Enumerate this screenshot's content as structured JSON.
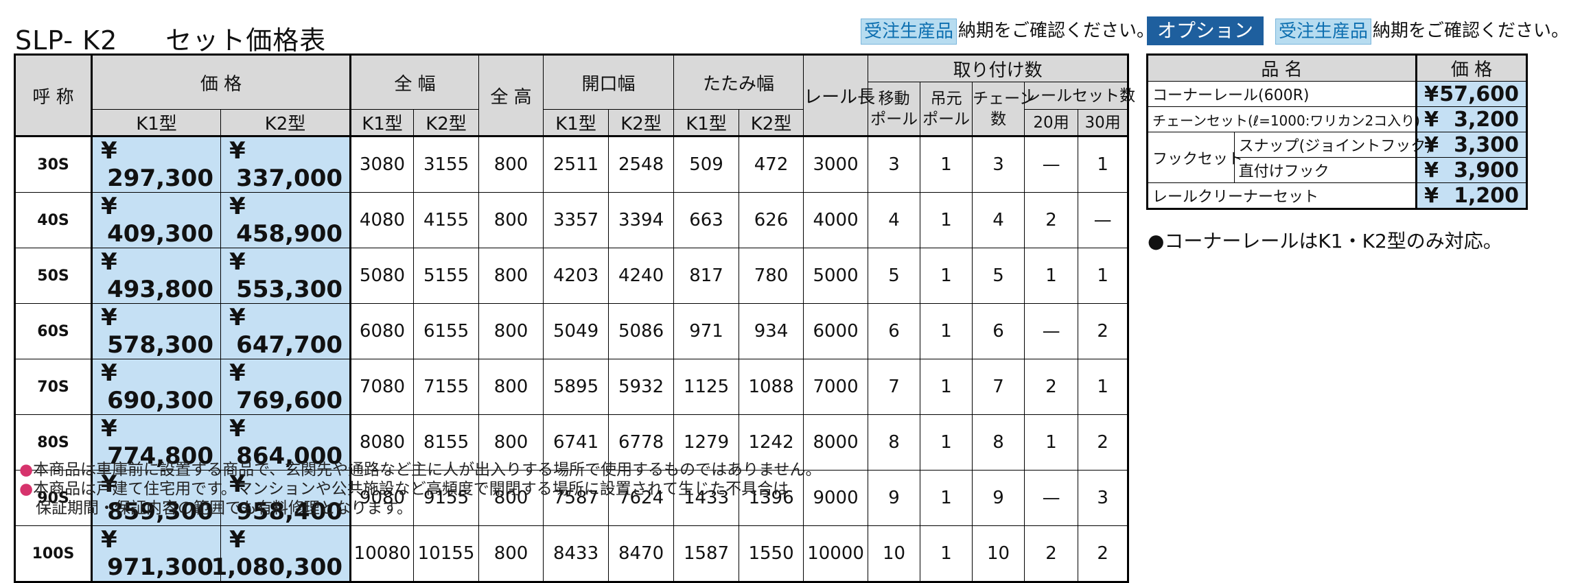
{
  "header": {
    "model": "SLP- K2",
    "subtitle": "セット価格表",
    "badge": "受注生産品",
    "note": "納期をご確認ください。",
    "option_title": "オプション",
    "option_badge": "受注生産品",
    "option_note": "納期をご確認ください。"
  },
  "table": {
    "col_headers": {
      "name": "呼 称",
      "price": "価 格",
      "width_total": "全 幅",
      "height_total": "全 高",
      "opening": "開口幅",
      "folding": "たたみ幅",
      "rail_length": "レール長",
      "mounting": "取り付け数",
      "moving_pole": "移動\nポール",
      "hanging_pole": "吊元\nポール",
      "chain": "チェーン\n数",
      "rail_set": "レールセット数",
      "k1": "K1型",
      "k2": "K2型",
      "use20": "20用",
      "use30": "30用"
    },
    "rows": [
      {
        "name": "30S",
        "k1_price": "297,300",
        "k2_price": "337,000",
        "w_k1": "3080",
        "w_k2": "3155",
        "h": "800",
        "o_k1": "2511",
        "o_k2": "2548",
        "f_k1": "509",
        "f_k2": "472",
        "rail": "3000",
        "move": "3",
        "hang": "1",
        "chain": "3",
        "r20": "—",
        "r30": "1"
      },
      {
        "name": "40S",
        "k1_price": "409,300",
        "k2_price": "458,900",
        "w_k1": "4080",
        "w_k2": "4155",
        "h": "800",
        "o_k1": "3357",
        "o_k2": "3394",
        "f_k1": "663",
        "f_k2": "626",
        "rail": "4000",
        "move": "4",
        "hang": "1",
        "chain": "4",
        "r20": "2",
        "r30": "—"
      },
      {
        "name": "50S",
        "k1_price": "493,800",
        "k2_price": "553,300",
        "w_k1": "5080",
        "w_k2": "5155",
        "h": "800",
        "o_k1": "4203",
        "o_k2": "4240",
        "f_k1": "817",
        "f_k2": "780",
        "rail": "5000",
        "move": "5",
        "hang": "1",
        "chain": "5",
        "r20": "1",
        "r30": "1"
      },
      {
        "name": "60S",
        "k1_price": "578,300",
        "k2_price": "647,700",
        "w_k1": "6080",
        "w_k2": "6155",
        "h": "800",
        "o_k1": "5049",
        "o_k2": "5086",
        "f_k1": "971",
        "f_k2": "934",
        "rail": "6000",
        "move": "6",
        "hang": "1",
        "chain": "6",
        "r20": "—",
        "r30": "2"
      },
      {
        "name": "70S",
        "k1_price": "690,300",
        "k2_price": "769,600",
        "w_k1": "7080",
        "w_k2": "7155",
        "h": "800",
        "o_k1": "5895",
        "o_k2": "5932",
        "f_k1": "1125",
        "f_k2": "1088",
        "rail": "7000",
        "move": "7",
        "hang": "1",
        "chain": "7",
        "r20": "2",
        "r30": "1"
      },
      {
        "name": "80S",
        "k1_price": "774,800",
        "k2_price": "864,000",
        "w_k1": "8080",
        "w_k2": "8155",
        "h": "800",
        "o_k1": "6741",
        "o_k2": "6778",
        "f_k1": "1279",
        "f_k2": "1242",
        "rail": "8000",
        "move": "8",
        "hang": "1",
        "chain": "8",
        "r20": "1",
        "r30": "2"
      },
      {
        "name": "90S",
        "k1_price": "859,300",
        "k2_price": "958,400",
        "w_k1": "9080",
        "w_k2": "9155",
        "h": "800",
        "o_k1": "7587",
        "o_k2": "7624",
        "f_k1": "1433",
        "f_k2": "1396",
        "rail": "9000",
        "move": "9",
        "hang": "1",
        "chain": "9",
        "r20": "—",
        "r30": "3"
      },
      {
        "name": "100S",
        "k1_price": "971,300",
        "k2_price": "1,080,300",
        "w_k1": "10080",
        "w_k2": "10155",
        "h": "800",
        "o_k1": "8433",
        "o_k2": "8470",
        "f_k1": "1587",
        "f_k2": "1550",
        "rail": "10000",
        "move": "10",
        "hang": "1",
        "chain": "10",
        "r20": "2",
        "r30": "2"
      }
    ],
    "yen": "¥"
  },
  "options": {
    "col_item": "品 名",
    "col_price": "価 格",
    "rows": [
      {
        "label": "コーナーレール(600R)",
        "price": "57,600"
      },
      {
        "label": "チェーンセット(ℓ=1000:ワリカン2コ入り)",
        "price": "3,200"
      },
      {
        "group": "フックセット",
        "label": "スナップ(ジョイントフック)",
        "price": "3,300"
      },
      {
        "label": "直付けフック",
        "price": "3,900"
      },
      {
        "label": "レールクリーナーセット",
        "price": "1,200"
      }
    ],
    "corner_note": "●コーナーレールはK1・K2型のみ対応。"
  },
  "footer": {
    "line1": "●本商品は車庫前に設置する商品で、玄関先や通路など主に人が出入りする場所で使用するものではありません。",
    "line2": "●本商品は戸建て住宅用です。マンションや公共施設など高頻度で開閉する場所に設置されて生じた不具合は",
    "line3": "保証期間・保証内容の範囲でも有料修理となります。"
  },
  "colors": {
    "price_bg": "#c5e0f4",
    "header_bg": "#d9d9d9",
    "badge_bg": "#b7dcf0",
    "badge_text": "#0d6fb0",
    "option_title_bg": "#1e5f9e",
    "footer_bullet": "#d6336c"
  }
}
